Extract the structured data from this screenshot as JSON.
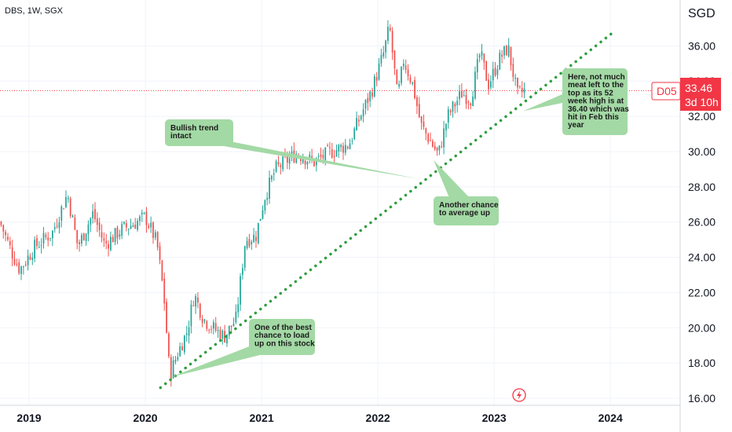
{
  "chart_data": {
    "type": "candlestick",
    "title": "DBS, 1W, SGX",
    "ylabel": "SGD",
    "ylim": [
      15.6,
      38.6
    ],
    "xlim": [
      2018.75,
      2024.6
    ],
    "y_ticks": [
      "16.00",
      "18.00",
      "20.00",
      "22.00",
      "24.00",
      "26.00",
      "28.00",
      "30.00",
      "32.00",
      "34.00",
      "36.00"
    ],
    "x_ticks": [
      {
        "label": "2019",
        "value": 2019.0
      },
      {
        "label": "2020",
        "value": 2020.0
      },
      {
        "label": "2021",
        "value": 2021.0
      },
      {
        "label": "2022",
        "value": 2022.0
      },
      {
        "label": "2023",
        "value": 2023.0
      },
      {
        "label": "2024",
        "value": 2024.0
      }
    ],
    "grid": true,
    "up_color": "#26a69a",
    "down_color": "#ef5350",
    "price_keypoints": [
      {
        "t": 2018.75,
        "p": 26.0
      },
      {
        "t": 2018.85,
        "p": 24.3
      },
      {
        "t": 2018.92,
        "p": 23.3
      },
      {
        "t": 2019.05,
        "p": 24.6
      },
      {
        "t": 2019.2,
        "p": 25.4
      },
      {
        "t": 2019.33,
        "p": 27.6
      },
      {
        "t": 2019.42,
        "p": 24.6
      },
      {
        "t": 2019.55,
        "p": 26.5
      },
      {
        "t": 2019.65,
        "p": 24.7
      },
      {
        "t": 2019.8,
        "p": 25.6
      },
      {
        "t": 2019.9,
        "p": 25.9
      },
      {
        "t": 2020.0,
        "p": 26.3
      },
      {
        "t": 2020.1,
        "p": 24.8
      },
      {
        "t": 2020.16,
        "p": 21.8
      },
      {
        "t": 2020.21,
        "p": 17.3
      },
      {
        "t": 2020.28,
        "p": 18.6
      },
      {
        "t": 2020.36,
        "p": 19.8
      },
      {
        "t": 2020.42,
        "p": 21.9
      },
      {
        "t": 2020.5,
        "p": 20.5
      },
      {
        "t": 2020.58,
        "p": 20.0
      },
      {
        "t": 2020.68,
        "p": 19.5
      },
      {
        "t": 2020.78,
        "p": 20.5
      },
      {
        "t": 2020.86,
        "p": 25.0
      },
      {
        "t": 2020.95,
        "p": 25.2
      },
      {
        "t": 2021.03,
        "p": 27.5
      },
      {
        "t": 2021.12,
        "p": 29.0
      },
      {
        "t": 2021.3,
        "p": 29.9
      },
      {
        "t": 2021.45,
        "p": 29.4
      },
      {
        "t": 2021.6,
        "p": 30.0
      },
      {
        "t": 2021.75,
        "p": 30.4
      },
      {
        "t": 2021.85,
        "p": 32.0
      },
      {
        "t": 2021.95,
        "p": 33.5
      },
      {
        "t": 2022.05,
        "p": 35.6
      },
      {
        "t": 2022.1,
        "p": 37.1
      },
      {
        "t": 2022.17,
        "p": 33.0
      },
      {
        "t": 2022.22,
        "p": 35.2
      },
      {
        "t": 2022.3,
        "p": 33.8
      },
      {
        "t": 2022.37,
        "p": 31.5
      },
      {
        "t": 2022.45,
        "p": 30.6
      },
      {
        "t": 2022.52,
        "p": 29.8
      },
      {
        "t": 2022.6,
        "p": 32.0
      },
      {
        "t": 2022.72,
        "p": 33.3
      },
      {
        "t": 2022.8,
        "p": 33.0
      },
      {
        "t": 2022.88,
        "p": 35.6
      },
      {
        "t": 2022.95,
        "p": 33.8
      },
      {
        "t": 2023.05,
        "p": 35.3
      },
      {
        "t": 2023.12,
        "p": 35.9
      },
      {
        "t": 2023.2,
        "p": 33.2
      },
      {
        "t": 2023.26,
        "p": 33.46
      }
    ],
    "trendline": {
      "from": [
        2020.13,
        16.6
      ],
      "to": [
        2024.03,
        36.8
      ],
      "color": "#2e9e3e"
    },
    "current_price": {
      "symbol": "D05",
      "price": "33.46",
      "countdown": "3d 10h",
      "value": 33.46,
      "color": "#f23645"
    },
    "annotations": [
      {
        "text": "Bullish trend intact",
        "lines": [
          "Bullish trend",
          "intact"
        ],
        "pointer": [
          2022.35,
          28.45
        ]
      },
      {
        "text": "Another chance to average up",
        "lines": [
          "Another chance",
          "to average up"
        ],
        "pointer": [
          2022.48,
          29.5
        ]
      },
      {
        "text": "Here, not much meat left to the top as its 52 week high is at 36.40 which was hit in Feb this year",
        "lines": [
          "Here, not much",
          "meat left to the",
          "top as its 52",
          "week high is at",
          "36.40 which was",
          "hit in Feb this",
          "year"
        ],
        "pointer": [
          2023.25,
          32.3
        ]
      },
      {
        "text": "One of the best chance to load up on this stock",
        "lines": [
          "One of the best",
          "chance to load",
          "up on this stock"
        ],
        "pointer": [
          2020.22,
          17.2
        ]
      }
    ],
    "annotation_fill": "#a3d9a5",
    "flash_icon": "lightning-bolt-icon"
  }
}
